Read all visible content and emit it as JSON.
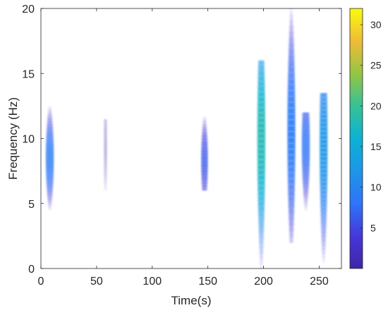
{
  "chart_data": {
    "type": "heatmap",
    "title": "",
    "xlabel": "Time(s)",
    "ylabel": "Frequency (Hz)",
    "xlim": [
      0,
      270
    ],
    "ylim": [
      0,
      20
    ],
    "x_ticks": [
      0,
      50,
      100,
      150,
      200,
      250
    ],
    "y_ticks": [
      0,
      5,
      10,
      15,
      20
    ],
    "grid": false,
    "colorbar": {
      "range": [
        0,
        32
      ],
      "ticks": [
        5,
        10,
        15,
        20,
        25,
        30
      ],
      "colormap": "parula"
    },
    "events": [
      {
        "time": 8,
        "freq_low": 4.5,
        "freq_high": 12.5,
        "peak_freq": 8.5,
        "peak_value": 9
      },
      {
        "time": 58,
        "freq_low": 6,
        "freq_high": 11.5,
        "peak_freq": 9.5,
        "peak_value": 1
      },
      {
        "time": 147,
        "freq_low": 6,
        "freq_high": 11.7,
        "peak_freq": 8.3,
        "peak_value": 6
      },
      {
        "time": 198,
        "freq_low": 0,
        "freq_high": 16,
        "peak_freq": 10,
        "peak_value": 18
      },
      {
        "time": 225,
        "freq_low": 2,
        "freq_high": 20,
        "peak_freq": 10.5,
        "peak_value": 9
      },
      {
        "time": 238,
        "freq_low": 4.5,
        "freq_high": 12,
        "peak_freq": 9.5,
        "peak_value": 8
      },
      {
        "time": 254,
        "freq_low": 0.5,
        "freq_high": 13.5,
        "peak_freq": 9.5,
        "peak_value": 12
      }
    ]
  }
}
